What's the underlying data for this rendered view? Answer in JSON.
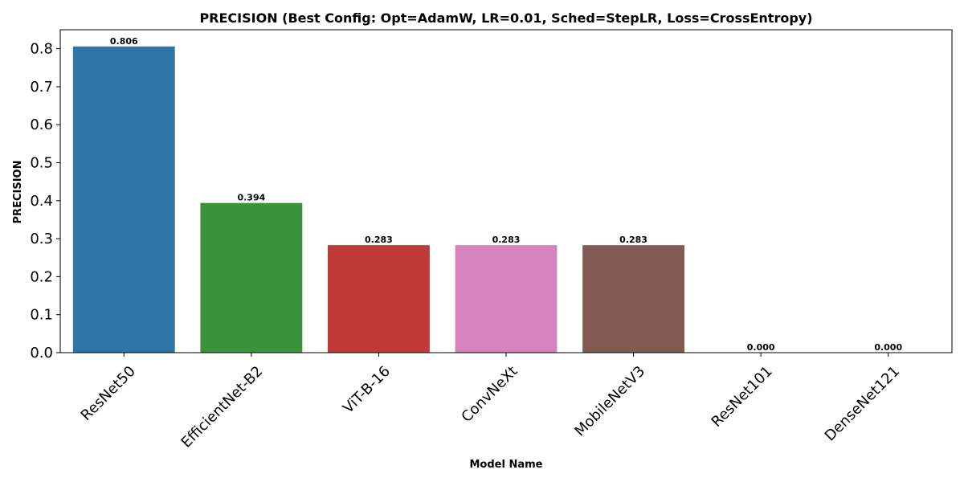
{
  "chart_data": {
    "type": "bar",
    "title": "PRECISION (Best Config: Opt=AdamW, LR=0.01, Sched=StepLR, Loss=CrossEntropy)",
    "xlabel": "Model Name",
    "ylabel": "PRECISION",
    "categories": [
      "ResNet50",
      "EfficientNet-B2",
      "ViT-B-16",
      "ConvNeXt",
      "MobileNetV3",
      "ResNet101",
      "DenseNet121"
    ],
    "values": [
      0.806,
      0.394,
      0.283,
      0.283,
      0.283,
      0.0,
      0.0
    ],
    "value_labels": [
      "0.806",
      "0.394",
      "0.283",
      "0.283",
      "0.283",
      "0.000",
      "0.000"
    ],
    "colors": [
      "#2e75a6",
      "#3a933a",
      "#c03a3a",
      "#d483bf",
      "#835a52",
      "#7f7f7f",
      "#bcbd22"
    ],
    "ylim": [
      0,
      0.85
    ],
    "yticks": [
      0.0,
      0.1,
      0.2,
      0.3,
      0.4,
      0.5,
      0.6,
      0.7,
      0.8
    ],
    "ytick_labels": [
      "0.0",
      "0.1",
      "0.2",
      "0.3",
      "0.4",
      "0.5",
      "0.6",
      "0.7",
      "0.8"
    ],
    "grid": false,
    "legend": false
  }
}
